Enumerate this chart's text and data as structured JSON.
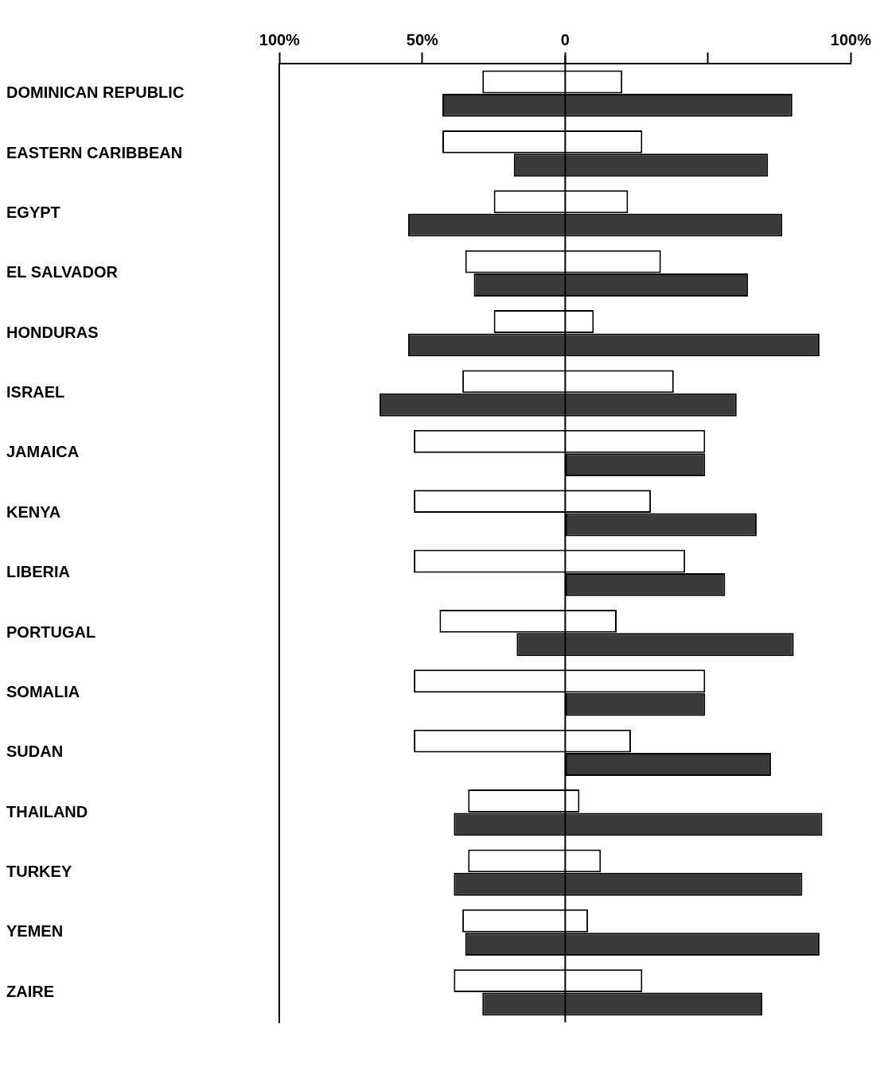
{
  "chart_data": {
    "type": "bar",
    "orientation": "horizontal",
    "categories": [
      "DOMINICAN REPUBLIC",
      "EASTERN CARIBBEAN",
      "EGYPT",
      "EL SALVADOR",
      "HONDURAS",
      "ISRAEL",
      "JAMAICA",
      "KENYA",
      "LIBERIA",
      "PORTUGAL",
      "SOMALIA",
      "SUDAN",
      "THAILAND",
      "TURKEY",
      "YEMEN",
      "ZAIRE"
    ],
    "series": [
      {
        "color": "#ffffff",
        "base": [
          -29,
          -43,
          -25,
          -35,
          -25,
          -36,
          -53,
          -53,
          -53,
          -44,
          -53,
          -53,
          -34,
          -34,
          -36,
          -39
        ],
        "values": [
          49,
          70,
          47,
          68.5,
          35,
          74,
          102,
          83,
          95,
          62,
          102,
          76,
          39,
          46.5,
          44,
          66
        ]
      },
      {
        "color": "#3a3a3a",
        "base": [
          -43,
          -18,
          -55,
          -32,
          -55,
          -65,
          0,
          0,
          0,
          -17,
          0,
          0,
          -39,
          -39,
          -35,
          -29
        ],
        "values": [
          122.5,
          89,
          131,
          96,
          144,
          125,
          49,
          67,
          56,
          97,
          49,
          72,
          129,
          122,
          124,
          98
        ]
      }
    ],
    "xlim": [
      -100,
      100
    ],
    "xticks": [
      {
        "value": -100,
        "label": "100%"
      },
      {
        "value": -50,
        "label": "50%"
      },
      0,
      {
        "value": 50,
        "label": null
      },
      {
        "value": 100,
        "label": "100%"
      }
    ],
    "ref_lines": [
      {
        "axis": "x",
        "value": 0
      }
    ],
    "grid": false,
    "legend": false
  }
}
